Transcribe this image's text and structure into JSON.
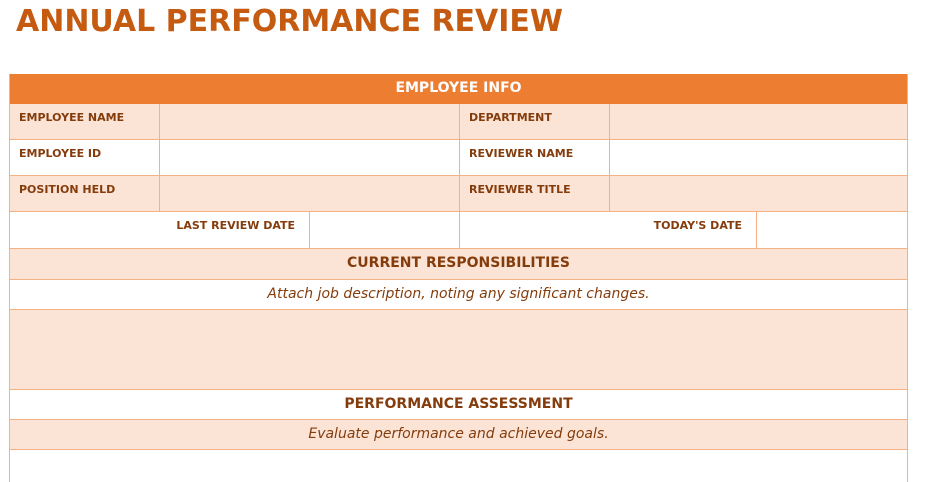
{
  "page": {
    "title": "ANNUAL PERFORMANCE REVIEW"
  },
  "employee_info": {
    "header": "EMPLOYEE INFO",
    "employee_name_label": "EMPLOYEE NAME",
    "employee_name_value": "",
    "department_label": "DEPARTMENT",
    "department_value": "",
    "employee_id_label": "EMPLOYEE ID",
    "employee_id_value": "",
    "reviewer_name_label": "REVIEWER NAME",
    "reviewer_name_value": "",
    "position_held_label": "POSITION HELD",
    "position_held_value": "",
    "reviewer_title_label": "REVIEWER TITLE",
    "reviewer_title_value": "",
    "last_review_date_label": "LAST REVIEW DATE",
    "last_review_date_value": "",
    "todays_date_label": "TODAY'S DATE",
    "todays_date_value": ""
  },
  "current_responsibilities": {
    "header": "CURRENT RESPONSIBILITIES",
    "note": "Attach job description, noting any significant changes.",
    "content": ""
  },
  "performance_assessment": {
    "header": "PERFORMANCE ASSESSMENT",
    "note": "Evaluate performance and achieved goals.",
    "content": ""
  },
  "colors": {
    "title": "#c55a11",
    "banner": "#ed7d31",
    "shade": "#fbe4d5",
    "border": "#f4b183",
    "label": "#843c0c"
  }
}
